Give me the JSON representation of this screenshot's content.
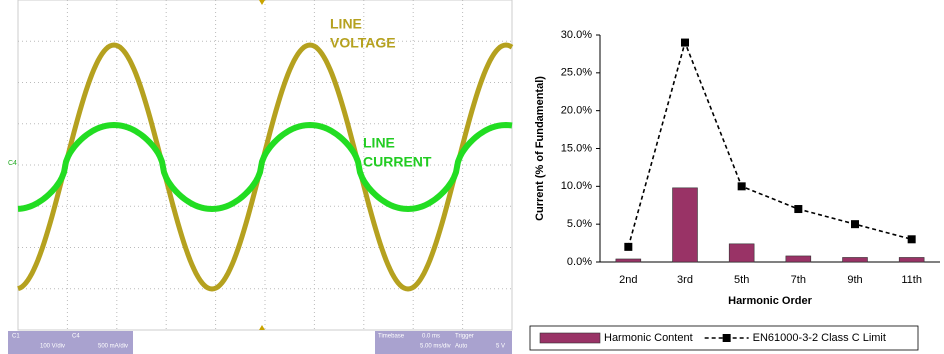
{
  "scope": {
    "voltage_label": [
      "LINE",
      "VOLTAGE"
    ],
    "current_label": [
      "LINE",
      "CURRENT"
    ],
    "channel_marker": "C4",
    "status": {
      "ch1": "C1",
      "ch1_scale": "100 V/div",
      "ch4": "C4",
      "ch4_scale": "500 mA/div",
      "timebase": "Timebase",
      "timebase_offset": "0.0 ms",
      "timebase_scale": "5.00 ms/div",
      "trigger": "Trigger",
      "trigger_mode": "Auto",
      "trigger_level": "5 V"
    }
  },
  "chart_data": {
    "type": "bar",
    "y_label": "Current (% of Fundamental)",
    "x_label": "Harmonic Order",
    "categories": [
      "2nd",
      "3rd",
      "5th",
      "7th",
      "9th",
      "11th"
    ],
    "series": [
      {
        "name": "Harmonic Content",
        "type": "bar",
        "color": "#993366",
        "values": [
          0.4,
          9.8,
          2.4,
          0.8,
          0.6,
          0.6
        ]
      },
      {
        "name": "EN61000-3-2 Class C Limit",
        "type": "line",
        "color": "#000000",
        "dashed": true,
        "marker": "square",
        "values": [
          2,
          29,
          10,
          7,
          5,
          3
        ]
      }
    ],
    "ylim": [
      0,
      30
    ],
    "yticks": [
      {
        "value": 0,
        "label": "0.0%"
      },
      {
        "value": 5,
        "label": "5.0%"
      },
      {
        "value": 10,
        "label": "10.0%"
      },
      {
        "value": 15,
        "label": "15.0%"
      },
      {
        "value": 20,
        "label": "20.0%"
      },
      {
        "value": 25,
        "label": "25.0%"
      },
      {
        "value": 30,
        "label": "30.0%"
      }
    ],
    "legend": "bottom"
  }
}
